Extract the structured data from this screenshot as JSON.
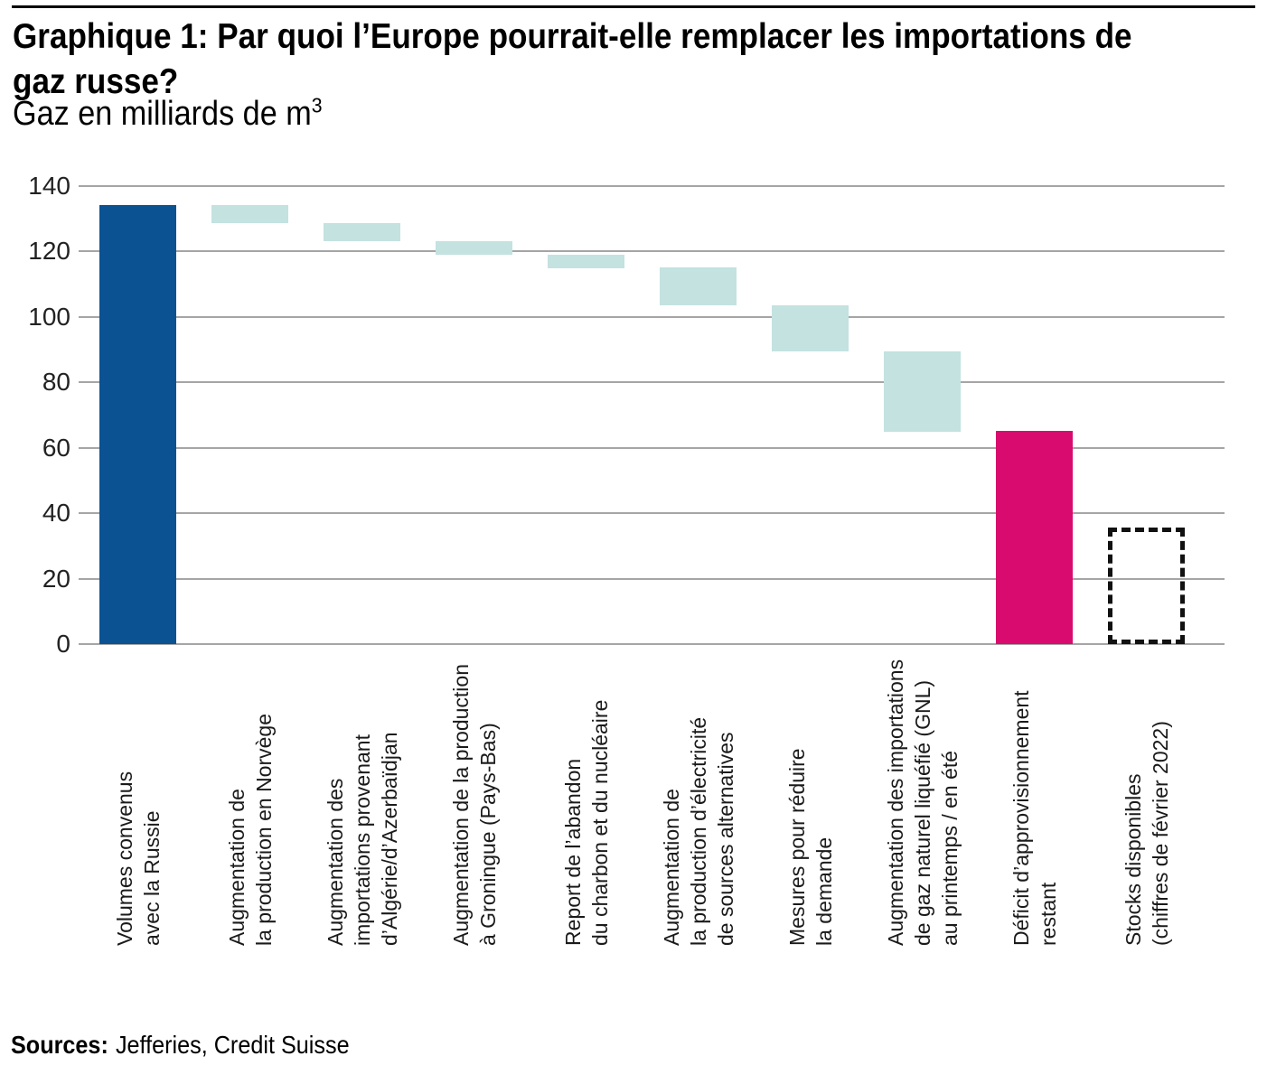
{
  "header": {
    "title_lines": [
      "Graphique 1: Par quoi l’Europe pourrait-elle remplacer les importations de",
      "gaz russe?"
    ],
    "subtitle": {
      "text": "Gaz en milliards de m",
      "superscript": "3"
    }
  },
  "footer": {
    "sources_label": "Sources:",
    "sources_text": "Jefferies, Credit Suisse"
  },
  "chart_data": {
    "type": "bar",
    "subtype": "waterfall",
    "title": "Graphique 1: Par quoi l’Europe pourrait-elle remplacer les importations de gaz russe?",
    "ylabel": "Gaz en milliards de m³",
    "xlabel": "",
    "ylim": [
      0,
      140
    ],
    "yticks": [
      0,
      20,
      40,
      60,
      80,
      100,
      120,
      140
    ],
    "grid": true,
    "legend": "none",
    "colors": {
      "agreed_volumes": "#0a5291",
      "replacement_measure": "#c3e2e0",
      "deficit": "#d90b6e",
      "stocks_outline": "#111111",
      "gridline": "#a5a5a5"
    },
    "bars": [
      {
        "category": "Volumes convenus avec la Russie",
        "label_lines": [
          "Volumes convenus",
          "avec la Russie"
        ],
        "base": 0,
        "top": 134,
        "value": 134,
        "role": "agreed-volumes",
        "color": "#0a5291",
        "style": "solid"
      },
      {
        "category": "Augmentation de la production en Norvège",
        "label_lines": [
          "Augmentation de",
          "la production en Norvège"
        ],
        "base": 128.5,
        "top": 134,
        "value": 5.5,
        "role": "replacement",
        "color": "#c3e2e0",
        "style": "solid"
      },
      {
        "category": "Augmentation des importations provenant d’Algérie/d’Azerbaïdjan",
        "label_lines": [
          "Augmentation des",
          "importations provenant",
          "d’Algérie/d’Azerbaïdjan"
        ],
        "base": 123,
        "top": 128.5,
        "value": 5.5,
        "role": "replacement",
        "color": "#c3e2e0",
        "style": "solid"
      },
      {
        "category": "Augmentation de la production à Groningue (Pays-Bas)",
        "label_lines": [
          "Augmentation de la production",
          "à Groningue (Pays-Bas)"
        ],
        "base": 119,
        "top": 123,
        "value": 4,
        "role": "replacement",
        "color": "#c3e2e0",
        "style": "solid"
      },
      {
        "category": "Report de l’abandon du charbon et du nucléaire",
        "label_lines": [
          "Report de l’abandon",
          "du charbon et du nucléaire"
        ],
        "base": 115,
        "top": 119,
        "value": 4,
        "role": "replacement",
        "color": "#c3e2e0",
        "style": "solid"
      },
      {
        "category": "Augmentation de la production d’électricité de sources alternatives",
        "label_lines": [
          "Augmentation de",
          "la production d’électricité",
          "de sources alternatives"
        ],
        "base": 103.5,
        "top": 115,
        "value": 11.5,
        "role": "replacement",
        "color": "#c3e2e0",
        "style": "solid"
      },
      {
        "category": "Mesures pour réduire la demande",
        "label_lines": [
          "Mesures pour réduire",
          "la demande"
        ],
        "base": 89.5,
        "top": 103.5,
        "value": 14,
        "role": "replacement",
        "color": "#c3e2e0",
        "style": "solid"
      },
      {
        "category": "Augmentation des importations de gaz naturel liquéfié (GNL) au printemps / en été",
        "label_lines": [
          "Augmentation des importations",
          "de gaz naturel liquéfié (GNL)",
          "au printemps / en été"
        ],
        "base": 65,
        "top": 89.5,
        "value": 24.5,
        "role": "replacement",
        "color": "#c3e2e0",
        "style": "solid"
      },
      {
        "category": "Déficit d’approvisionnement restant",
        "label_lines": [
          "Déficit d’approvisionnement",
          "restant"
        ],
        "base": 0,
        "top": 65,
        "value": 65,
        "role": "remaining-deficit",
        "color": "#d90b6e",
        "style": "solid"
      },
      {
        "category": "Stocks disponibles (chiffres de février 2022)",
        "label_lines": [
          "Stocks disponibles",
          "(chiffres de février 2022)"
        ],
        "base": 0,
        "top": 35.5,
        "value": 35.5,
        "role": "available-stocks",
        "color": null,
        "style": "dashed"
      }
    ]
  }
}
